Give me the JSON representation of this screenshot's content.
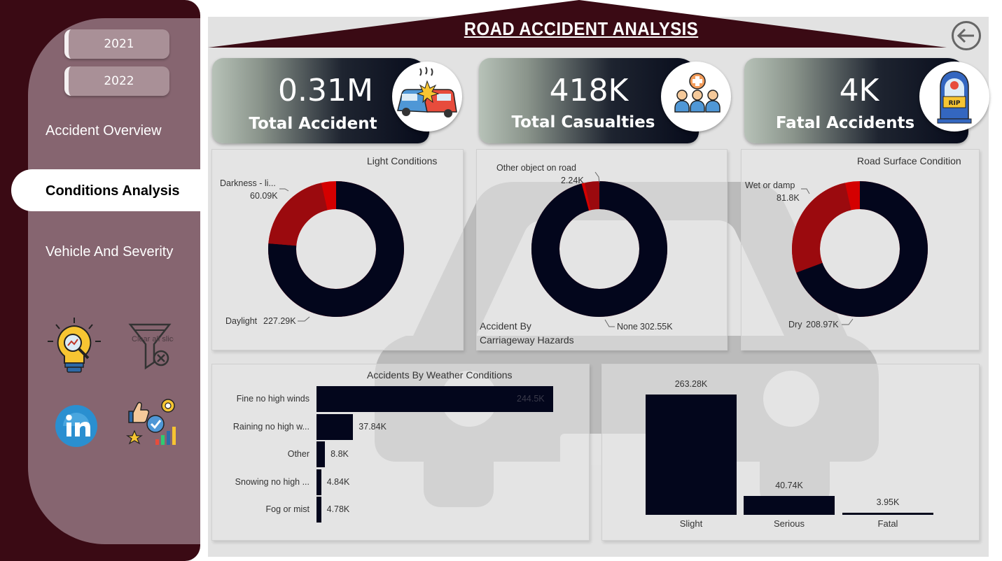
{
  "app": {
    "title": "ROAD ACCIDENT ANALYSIS"
  },
  "sidebar": {
    "years": [
      "2021",
      "2022"
    ],
    "nav": [
      {
        "label": "Accident Overview",
        "active": false
      },
      {
        "label": "Conditions Analysis",
        "active": true
      },
      {
        "label": "Vehicle And Severity",
        "active": false
      }
    ],
    "icons": [
      "insights-bulb-icon",
      "clear-filter-icon",
      "linkedin-icon",
      "feedback-rating-icon"
    ],
    "clear_filter_text": "Clear all slicers"
  },
  "kpis": [
    {
      "value": "0.31M",
      "label": "Total Accident",
      "icon": "car-crash-icon"
    },
    {
      "value": "418K",
      "label": "Total Casualties",
      "icon": "people-medical-icon"
    },
    {
      "value": "4K",
      "label": "Fatal Accidents",
      "icon": "rip-memorial-icon"
    }
  ],
  "colors": {
    "dark_navy": "#03061c",
    "dark_red": "#9b0a0e",
    "red": "#d40000",
    "maroon": "#3a0a14",
    "panel": "#866570"
  },
  "chart_data": [
    {
      "type": "pie",
      "title": "Light Conditions",
      "donut": true,
      "labels": [
        "Daylight",
        "Darkness - li..."
      ],
      "values": [
        227.29,
        60.09
      ],
      "value_labels": [
        "227.29K",
        "60.09K"
      ],
      "colors": [
        "#03061c",
        "#9b0a0e",
        "#d40000"
      ]
    },
    {
      "type": "pie",
      "title": "Accident By Carriageway Hazards",
      "donut": true,
      "labels": [
        "None",
        "Other object on road"
      ],
      "values": [
        302.55,
        2.24
      ],
      "value_labels": [
        "302.55K",
        "2.24K"
      ],
      "colors": [
        "#03061c",
        "#d40000",
        "#9b0a0e"
      ]
    },
    {
      "type": "pie",
      "title": "Road Surface Condition",
      "donut": true,
      "labels": [
        "Dry",
        "Wet or damp"
      ],
      "values": [
        208.97,
        81.8
      ],
      "value_labels": [
        "208.97K",
        "81.8K"
      ],
      "colors": [
        "#03061c",
        "#9b0a0e",
        "#d40000"
      ]
    },
    {
      "type": "bar",
      "orientation": "horizontal",
      "title": "Accidents By Weather Conditions",
      "categories": [
        "Fine no high winds",
        "Raining no high w...",
        "Other",
        "Snowing no high ...",
        "Fog or mist"
      ],
      "values": [
        244.5,
        37.84,
        8.8,
        4.84,
        4.78
      ],
      "value_labels": [
        "244.5K",
        "37.84K",
        "8.8K",
        "4.84K",
        "4.78K"
      ]
    },
    {
      "type": "bar",
      "orientation": "vertical",
      "title": "",
      "categories": [
        "Slight",
        "Serious",
        "Fatal"
      ],
      "values": [
        263.28,
        40.74,
        3.95
      ],
      "value_labels": [
        "263.28K",
        "40.74K",
        "3.95K"
      ]
    }
  ]
}
